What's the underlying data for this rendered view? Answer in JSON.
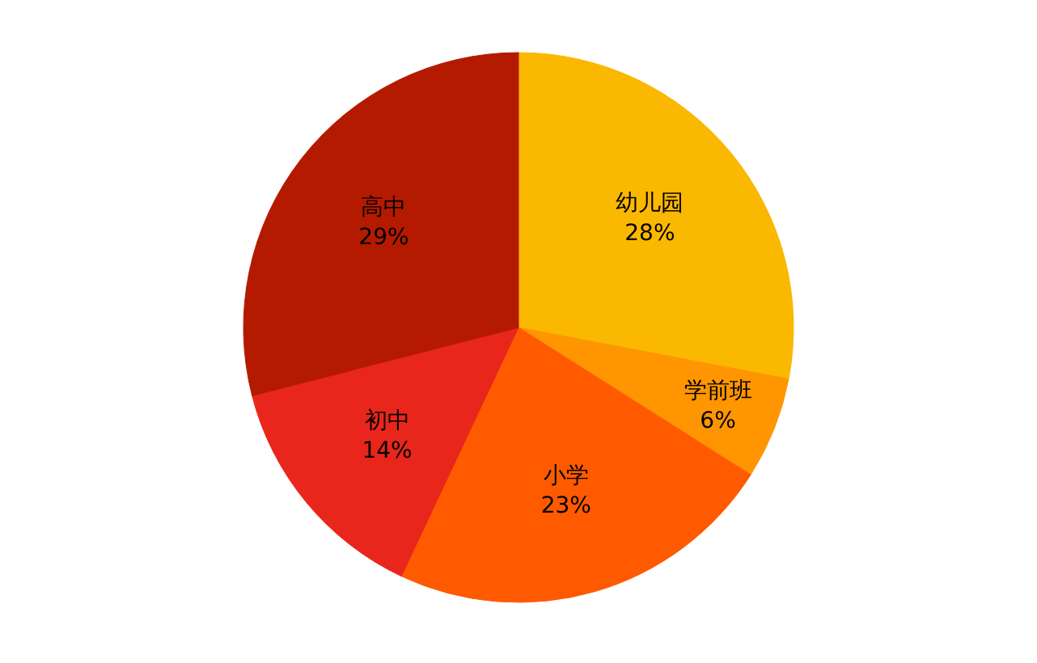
{
  "chart_data": {
    "type": "pie",
    "categories": [
      "幼儿园",
      "学前班",
      "小学",
      "初中",
      "高中"
    ],
    "values": [
      28,
      6,
      23,
      14,
      29
    ],
    "colors": [
      "#fbb800",
      "#ff9500",
      "#ff5a00",
      "#e8261b",
      "#b41a00"
    ],
    "value_labels": [
      "28%",
      "6%",
      "23%",
      "14%",
      "29%"
    ]
  }
}
